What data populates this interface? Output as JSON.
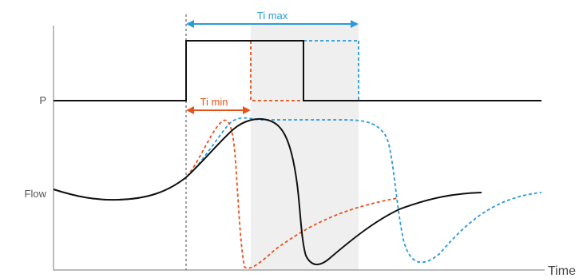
{
  "labels": {
    "p": "P",
    "flow": "Flow",
    "time": "Time",
    "ti_max": "Ti max",
    "ti_min": "Ti min"
  },
  "colors": {
    "axis": "#7a7a7a",
    "black_trace": "#111111",
    "orange_trace": "#e8531c",
    "blue_trace": "#2a9ad8",
    "ti_max": "#2a9ad8",
    "ti_min": "#e8531c",
    "shade": "#efeff0"
  },
  "legend": {
    "black_trace": "solid black",
    "orange_trace": "dashed orange",
    "blue_trace": "dashed blue"
  }
}
